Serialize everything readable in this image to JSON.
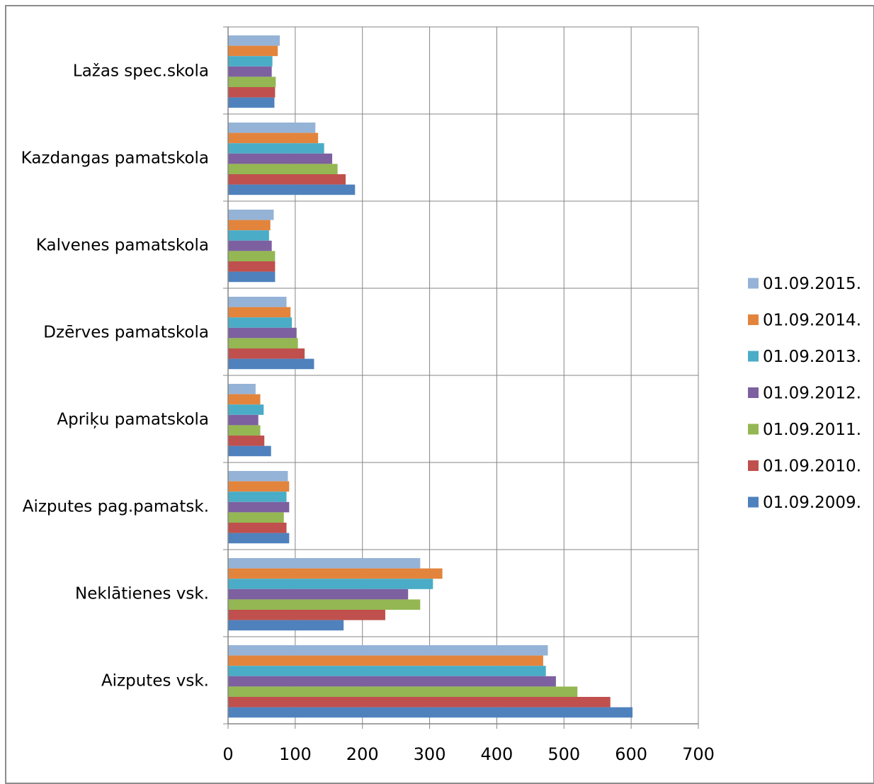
{
  "chart_data": {
    "type": "bar",
    "orientation": "horizontal",
    "title": "",
    "xlabel": "",
    "ylabel": "",
    "xlim": [
      0,
      700
    ],
    "xticks": [
      0,
      100,
      200,
      300,
      400,
      500,
      600,
      700
    ],
    "grid": true,
    "legend_position": "right",
    "categories": [
      "Lažas spec.skola",
      "Kazdangas pamatskola",
      "Kalvenes pamatskola",
      "Dzērves pamatskola",
      "Apriķu pamatskola",
      "Aizputes pag.pamatsk.",
      "Neklātienes vsk.",
      "Aizputes vsk."
    ],
    "series": [
      {
        "name": "01.09.2015.",
        "color": "#95b3d7",
        "values": [
          77,
          130,
          68,
          87,
          41,
          89,
          286,
          476
        ]
      },
      {
        "name": "01.09.2014.",
        "color": "#e3843d",
        "values": [
          74,
          134,
          63,
          93,
          48,
          91,
          319,
          469
        ]
      },
      {
        "name": "01.09.2013.",
        "color": "#4aacc6",
        "values": [
          66,
          143,
          61,
          95,
          53,
          87,
          305,
          473
        ]
      },
      {
        "name": "01.09.2012.",
        "color": "#7d60a0",
        "values": [
          65,
          155,
          65,
          102,
          45,
          91,
          268,
          488
        ]
      },
      {
        "name": "01.09.2011.",
        "color": "#94b753",
        "values": [
          71,
          163,
          70,
          104,
          48,
          83,
          286,
          520
        ]
      },
      {
        "name": "01.09.2010.",
        "color": "#c0504d",
        "values": [
          70,
          175,
          70,
          114,
          54,
          87,
          234,
          569
        ]
      },
      {
        "name": "01.09.2009.",
        "color": "#4f81bd",
        "values": [
          69,
          189,
          70,
          128,
          64,
          91,
          172,
          602
        ]
      }
    ]
  }
}
